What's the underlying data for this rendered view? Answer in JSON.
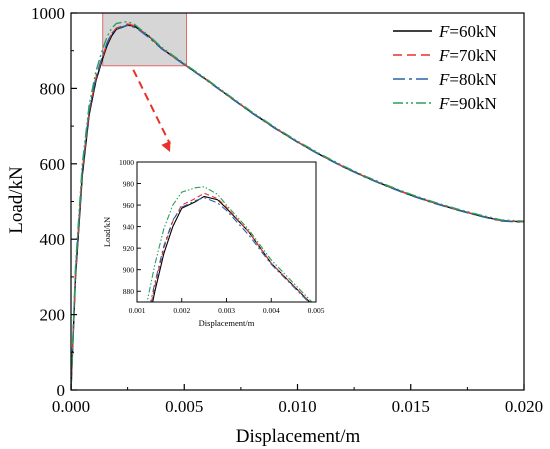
{
  "chart_data": {
    "type": "line",
    "title": "",
    "xlabel": "Displacement/m",
    "ylabel": "Load/kN",
    "xlim": [
      0,
      0.02
    ],
    "ylim": [
      0,
      1000
    ],
    "xticks": [
      "0.000",
      "0.005",
      "0.010",
      "0.015",
      "0.020"
    ],
    "yticks": [
      "0",
      "200",
      "400",
      "600",
      "800",
      "1000"
    ],
    "legend_position": "top-right",
    "grid": false,
    "series": [
      {
        "name": "F=60kN",
        "name_italic": "F",
        "name_rest": "=60kN",
        "color": "#000000",
        "dash": "solid",
        "points": [
          [
            0,
            0
          ],
          [
            0.0002,
            300
          ],
          [
            0.0005,
            570
          ],
          [
            0.0008,
            730
          ],
          [
            0.0011,
            820
          ],
          [
            0.0014,
            880
          ],
          [
            0.0016,
            915
          ],
          [
            0.0018,
            940
          ],
          [
            0.002,
            957
          ],
          [
            0.0023,
            963
          ],
          [
            0.0025,
            968
          ],
          [
            0.0028,
            965
          ],
          [
            0.003,
            957
          ],
          [
            0.0035,
            935
          ],
          [
            0.004,
            906
          ],
          [
            0.005,
            864
          ],
          [
            0.006,
            822
          ],
          [
            0.007,
            778
          ],
          [
            0.008,
            735
          ],
          [
            0.009,
            695
          ],
          [
            0.01,
            658
          ],
          [
            0.011,
            624
          ],
          [
            0.012,
            593
          ],
          [
            0.013,
            565
          ],
          [
            0.014,
            540
          ],
          [
            0.015,
            517
          ],
          [
            0.016,
            497
          ],
          [
            0.017,
            479
          ],
          [
            0.018,
            463
          ],
          [
            0.019,
            449
          ],
          [
            0.02,
            446
          ]
        ]
      },
      {
        "name": "F=70kN",
        "name_italic": "F",
        "name_rest": "=70kN",
        "color": "#e8312b",
        "dash": "dashed",
        "points": [
          [
            0,
            0
          ],
          [
            0.0002,
            310
          ],
          [
            0.0005,
            580
          ],
          [
            0.0008,
            738
          ],
          [
            0.0011,
            826
          ],
          [
            0.0014,
            885
          ],
          [
            0.0016,
            920
          ],
          [
            0.0018,
            945
          ],
          [
            0.002,
            960
          ],
          [
            0.0023,
            966
          ],
          [
            0.0025,
            971
          ],
          [
            0.0028,
            966
          ],
          [
            0.003,
            958
          ],
          [
            0.0035,
            935
          ],
          [
            0.004,
            906
          ],
          [
            0.005,
            864
          ],
          [
            0.006,
            822
          ],
          [
            0.007,
            778
          ],
          [
            0.008,
            735
          ],
          [
            0.009,
            695
          ],
          [
            0.01,
            658
          ],
          [
            0.011,
            624
          ],
          [
            0.012,
            593
          ],
          [
            0.013,
            565
          ],
          [
            0.014,
            540
          ],
          [
            0.015,
            517
          ],
          [
            0.016,
            497
          ],
          [
            0.017,
            479
          ],
          [
            0.018,
            463
          ],
          [
            0.019,
            449
          ],
          [
            0.02,
            446
          ]
        ]
      },
      {
        "name": "F=80kN",
        "name_italic": "F",
        "name_rest": "=80kN",
        "color": "#2a62a6",
        "dash": "dashdot",
        "points": [
          [
            0,
            0
          ],
          [
            0.0002,
            315
          ],
          [
            0.0005,
            585
          ],
          [
            0.0008,
            742
          ],
          [
            0.0011,
            830
          ],
          [
            0.0014,
            888
          ],
          [
            0.0016,
            922
          ],
          [
            0.0018,
            946
          ],
          [
            0.002,
            958
          ],
          [
            0.0023,
            964
          ],
          [
            0.0025,
            967
          ],
          [
            0.0028,
            962
          ],
          [
            0.003,
            955
          ],
          [
            0.0035,
            932
          ],
          [
            0.004,
            905
          ],
          [
            0.005,
            863
          ],
          [
            0.006,
            821
          ],
          [
            0.007,
            777
          ],
          [
            0.008,
            734
          ],
          [
            0.009,
            694
          ],
          [
            0.01,
            657
          ],
          [
            0.011,
            623
          ],
          [
            0.012,
            592
          ],
          [
            0.013,
            564
          ],
          [
            0.014,
            539
          ],
          [
            0.015,
            516
          ],
          [
            0.016,
            496
          ],
          [
            0.017,
            478
          ],
          [
            0.018,
            462
          ],
          [
            0.019,
            448
          ],
          [
            0.02,
            445
          ]
        ]
      },
      {
        "name": "F=90kN",
        "name_italic": "F",
        "name_rest": "=90kN",
        "color": "#2e9e59",
        "dash": "dashdotdot",
        "points": [
          [
            0,
            0
          ],
          [
            0.0002,
            330
          ],
          [
            0.0005,
            600
          ],
          [
            0.0008,
            755
          ],
          [
            0.0011,
            845
          ],
          [
            0.0014,
            905
          ],
          [
            0.0016,
            938
          ],
          [
            0.0018,
            960
          ],
          [
            0.002,
            972
          ],
          [
            0.0023,
            976
          ],
          [
            0.0025,
            977
          ],
          [
            0.0028,
            970
          ],
          [
            0.003,
            960
          ],
          [
            0.0035,
            937
          ],
          [
            0.004,
            909
          ],
          [
            0.005,
            866
          ],
          [
            0.006,
            824
          ],
          [
            0.007,
            780
          ],
          [
            0.008,
            737
          ],
          [
            0.009,
            697
          ],
          [
            0.01,
            660
          ],
          [
            0.011,
            626
          ],
          [
            0.012,
            595
          ],
          [
            0.013,
            567
          ],
          [
            0.014,
            542
          ],
          [
            0.015,
            519
          ],
          [
            0.016,
            499
          ],
          [
            0.017,
            481
          ],
          [
            0.018,
            465
          ],
          [
            0.019,
            451
          ],
          [
            0.02,
            448
          ]
        ]
      }
    ],
    "zoom_region": {
      "xlim": [
        0.0014,
        0.0051
      ],
      "ylim": [
        860,
        1000
      ]
    },
    "inset": {
      "xlim": [
        0.001,
        0.005
      ],
      "ylim": [
        870,
        1000
      ],
      "xticks": [
        "0.001",
        "0.002",
        "0.003",
        "0.004",
        "0.005"
      ],
      "yticks": [
        "880",
        "900",
        "920",
        "940",
        "960",
        "980",
        "1000"
      ],
      "xlabel": "Displacement/m",
      "ylabel": "Load/kN"
    }
  }
}
